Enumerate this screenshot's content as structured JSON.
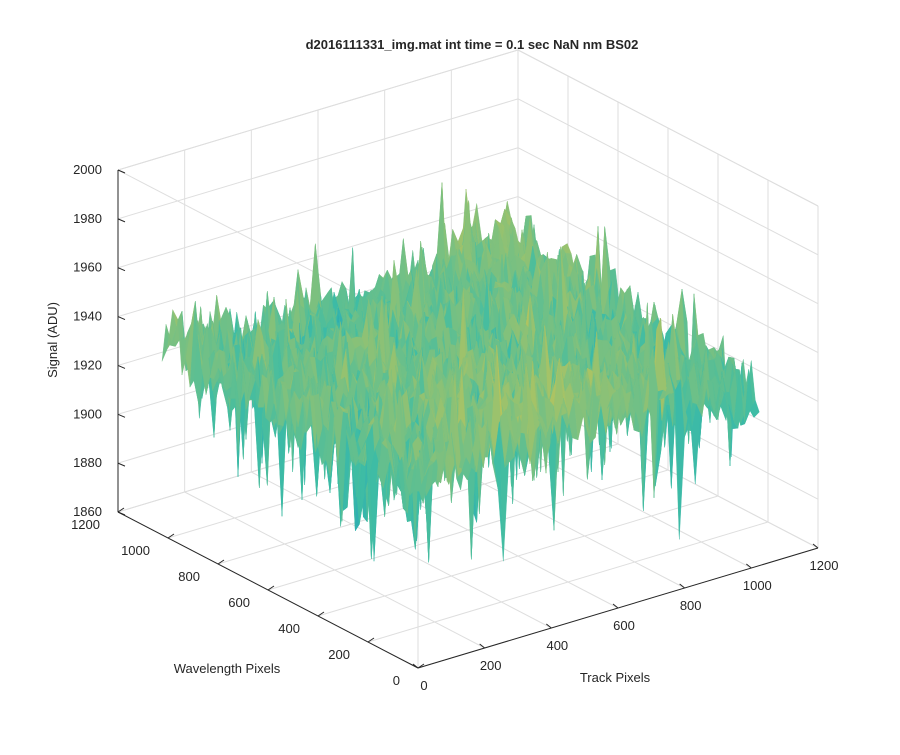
{
  "chart_data": {
    "type": "surface3d",
    "title": "d2016111331_img.mat int time = 0.1 sec  NaN nm BS02",
    "xlabel": "Track Pixels",
    "ylabel": "Wavelength Pixels",
    "zlabel": "Signal (ADU)",
    "xlim": [
      0,
      1200
    ],
    "ylim": [
      0,
      1200
    ],
    "zlim": [
      1860,
      2000
    ],
    "x_ticks": [
      "0",
      "200",
      "400",
      "600",
      "800",
      "1000",
      "1200"
    ],
    "y_ticks": [
      "0",
      "200",
      "400",
      "600",
      "800",
      "1000",
      "1200"
    ],
    "z_ticks": [
      "1860",
      "1880",
      "1900",
      "1920",
      "1940",
      "1960",
      "1980",
      "2000"
    ],
    "grid": true,
    "colormap": "parula",
    "surface_extent": {
      "x": [
        0,
        1024
      ],
      "y": [
        0,
        1024
      ]
    },
    "typical_signal_range": [
      1875,
      1975
    ],
    "mean_signal": 1935,
    "colors": {
      "low": "#0d8fd0",
      "mid": "#3fbda4",
      "high": "#f5c737",
      "axis": "#262626",
      "grid": "#dedede"
    }
  }
}
